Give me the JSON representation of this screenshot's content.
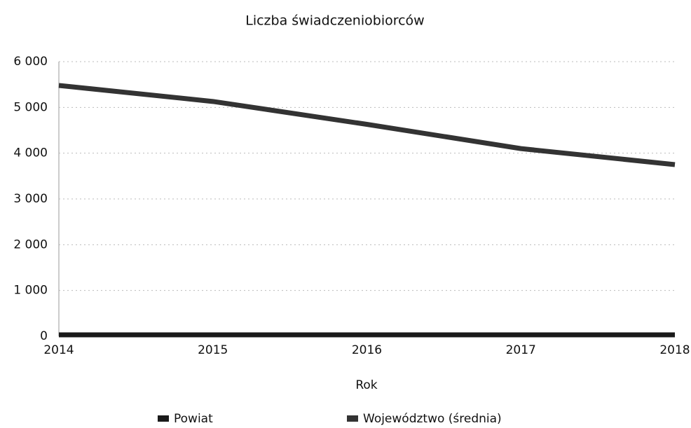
{
  "chart_data": {
    "type": "line",
    "title": "Liczba świadczeniobiorców",
    "x": [
      2014,
      2015,
      2016,
      2017,
      2018
    ],
    "xlabel": "Rok",
    "xlim": [
      2014,
      2018
    ],
    "xticks": [
      2014,
      2015,
      2016,
      2017,
      2018
    ],
    "ylim": [
      0,
      6000
    ],
    "yticks": [
      0,
      {
        "value": 1000,
        "label": "1 000"
      },
      {
        "value": 2000,
        "label": "2 000"
      },
      {
        "value": 3000,
        "label": "3 000"
      },
      {
        "value": 4000,
        "label": "4 000"
      },
      {
        "value": 5000,
        "label": "5 000"
      },
      {
        "value": 6000,
        "label": "6 000"
      }
    ],
    "grid": true,
    "series": [
      {
        "name": "Powiat",
        "color": "#1a1a1a",
        "values": [
          30,
          30,
          30,
          30,
          30
        ]
      },
      {
        "name": "Województwo (średnia)",
        "color": "#333333",
        "values": [
          5480,
          5130,
          4630,
          4100,
          3750
        ]
      }
    ]
  }
}
